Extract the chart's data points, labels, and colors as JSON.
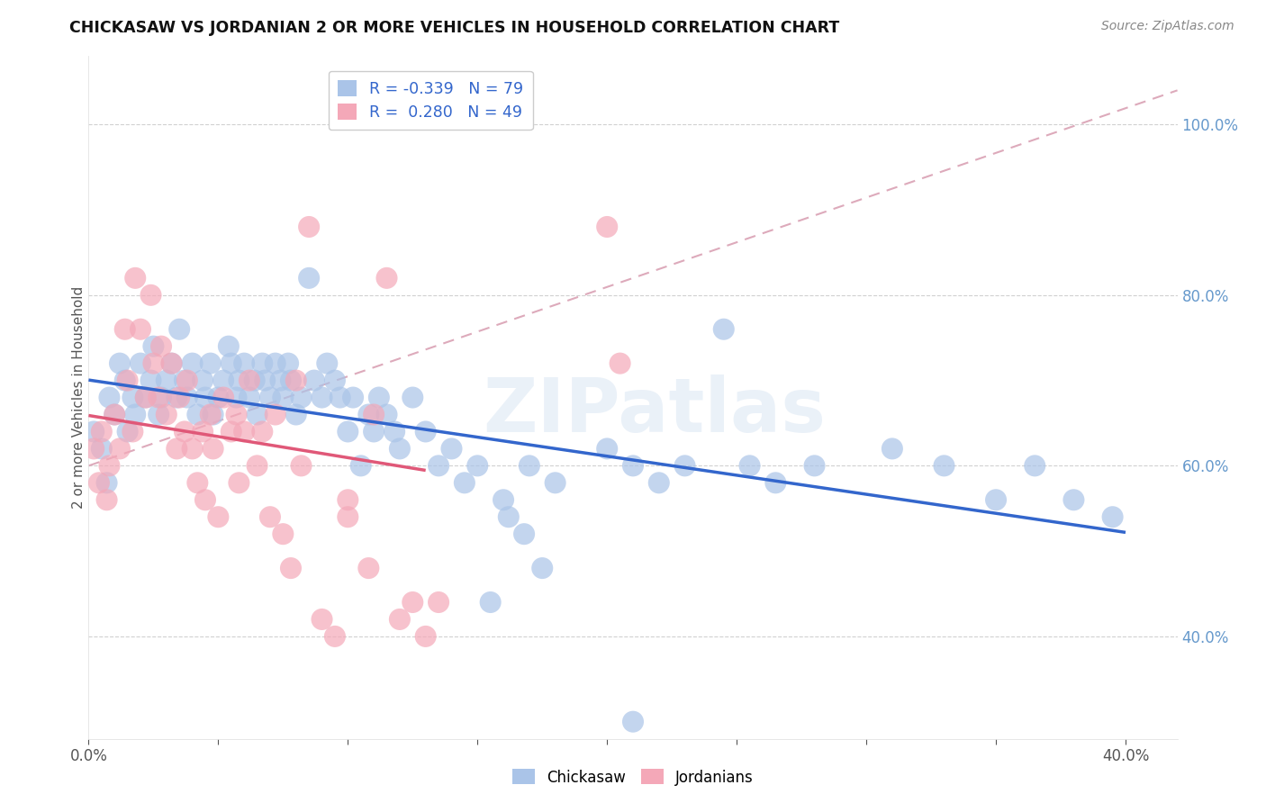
{
  "title": "CHICKASAW VS JORDANIAN 2 OR MORE VEHICLES IN HOUSEHOLD CORRELATION CHART",
  "source": "Source: ZipAtlas.com",
  "ylabel": "2 or more Vehicles in Household",
  "xlim": [
    0.0,
    0.42
  ],
  "ylim": [
    0.28,
    1.08
  ],
  "yticks": [
    0.4,
    0.6,
    0.8,
    1.0
  ],
  "ytick_labels": [
    "40.0%",
    "60.0%",
    "80.0%",
    "100.0%"
  ],
  "xticks": [
    0.0,
    0.05,
    0.1,
    0.15,
    0.2,
    0.25,
    0.3,
    0.35,
    0.4
  ],
  "xtick_labels": [
    "0.0%",
    "",
    "",
    "",
    "",
    "",
    "",
    "",
    "40.0%"
  ],
  "chickasaw_R": -0.339,
  "chickasaw_N": 79,
  "jordanian_R": 0.28,
  "jordanian_N": 49,
  "chickasaw_color": "#aac4e8",
  "jordanian_color": "#f4a8b8",
  "trend_chickasaw_color": "#3366cc",
  "trend_jordanian_color": "#e05878",
  "ref_line_color": "#ddaabb",
  "watermark": "ZIPatlas",
  "background_color": "#ffffff",
  "legend_text_color": "#3366cc",
  "ytick_color": "#6699cc",
  "xtick_color": "#555555",
  "chickasaw_points": [
    [
      0.002,
      0.64
    ],
    [
      0.005,
      0.62
    ],
    [
      0.007,
      0.58
    ],
    [
      0.008,
      0.68
    ],
    [
      0.01,
      0.66
    ],
    [
      0.012,
      0.72
    ],
    [
      0.014,
      0.7
    ],
    [
      0.015,
      0.64
    ],
    [
      0.017,
      0.68
    ],
    [
      0.018,
      0.66
    ],
    [
      0.02,
      0.72
    ],
    [
      0.022,
      0.68
    ],
    [
      0.024,
      0.7
    ],
    [
      0.025,
      0.74
    ],
    [
      0.027,
      0.66
    ],
    [
      0.028,
      0.68
    ],
    [
      0.03,
      0.7
    ],
    [
      0.032,
      0.72
    ],
    [
      0.034,
      0.68
    ],
    [
      0.035,
      0.76
    ],
    [
      0.037,
      0.7
    ],
    [
      0.038,
      0.68
    ],
    [
      0.04,
      0.72
    ],
    [
      0.042,
      0.66
    ],
    [
      0.044,
      0.7
    ],
    [
      0.045,
      0.68
    ],
    [
      0.047,
      0.72
    ],
    [
      0.048,
      0.66
    ],
    [
      0.05,
      0.68
    ],
    [
      0.052,
      0.7
    ],
    [
      0.054,
      0.74
    ],
    [
      0.055,
      0.72
    ],
    [
      0.057,
      0.68
    ],
    [
      0.058,
      0.7
    ],
    [
      0.06,
      0.72
    ],
    [
      0.062,
      0.68
    ],
    [
      0.064,
      0.7
    ],
    [
      0.065,
      0.66
    ],
    [
      0.067,
      0.72
    ],
    [
      0.068,
      0.7
    ],
    [
      0.07,
      0.68
    ],
    [
      0.072,
      0.72
    ],
    [
      0.074,
      0.7
    ],
    [
      0.075,
      0.68
    ],
    [
      0.077,
      0.72
    ],
    [
      0.078,
      0.7
    ],
    [
      0.08,
      0.66
    ],
    [
      0.082,
      0.68
    ],
    [
      0.085,
      0.82
    ],
    [
      0.087,
      0.7
    ],
    [
      0.09,
      0.68
    ],
    [
      0.092,
      0.72
    ],
    [
      0.095,
      0.7
    ],
    [
      0.097,
      0.68
    ],
    [
      0.1,
      0.64
    ],
    [
      0.102,
      0.68
    ],
    [
      0.105,
      0.6
    ],
    [
      0.108,
      0.66
    ],
    [
      0.11,
      0.64
    ],
    [
      0.112,
      0.68
    ],
    [
      0.115,
      0.66
    ],
    [
      0.118,
      0.64
    ],
    [
      0.12,
      0.62
    ],
    [
      0.125,
      0.68
    ],
    [
      0.13,
      0.64
    ],
    [
      0.135,
      0.6
    ],
    [
      0.14,
      0.62
    ],
    [
      0.145,
      0.58
    ],
    [
      0.15,
      0.6
    ],
    [
      0.16,
      0.56
    ],
    [
      0.17,
      0.6
    ],
    [
      0.18,
      0.58
    ],
    [
      0.2,
      0.62
    ],
    [
      0.21,
      0.6
    ],
    [
      0.22,
      0.58
    ],
    [
      0.23,
      0.6
    ],
    [
      0.245,
      0.76
    ],
    [
      0.255,
      0.6
    ],
    [
      0.265,
      0.58
    ],
    [
      0.28,
      0.6
    ],
    [
      0.31,
      0.62
    ],
    [
      0.33,
      0.6
    ],
    [
      0.35,
      0.56
    ],
    [
      0.365,
      0.6
    ],
    [
      0.38,
      0.56
    ],
    [
      0.395,
      0.54
    ],
    [
      0.21,
      0.3
    ],
    [
      0.155,
      0.44
    ],
    [
      0.162,
      0.54
    ],
    [
      0.168,
      0.52
    ],
    [
      0.175,
      0.48
    ]
  ],
  "jordanian_points": [
    [
      0.002,
      0.62
    ],
    [
      0.004,
      0.58
    ],
    [
      0.005,
      0.64
    ],
    [
      0.007,
      0.56
    ],
    [
      0.008,
      0.6
    ],
    [
      0.01,
      0.66
    ],
    [
      0.012,
      0.62
    ],
    [
      0.014,
      0.76
    ],
    [
      0.015,
      0.7
    ],
    [
      0.017,
      0.64
    ],
    [
      0.018,
      0.82
    ],
    [
      0.02,
      0.76
    ],
    [
      0.022,
      0.68
    ],
    [
      0.024,
      0.8
    ],
    [
      0.025,
      0.72
    ],
    [
      0.027,
      0.68
    ],
    [
      0.028,
      0.74
    ],
    [
      0.03,
      0.66
    ],
    [
      0.032,
      0.72
    ],
    [
      0.034,
      0.62
    ],
    [
      0.035,
      0.68
    ],
    [
      0.037,
      0.64
    ],
    [
      0.038,
      0.7
    ],
    [
      0.04,
      0.62
    ],
    [
      0.042,
      0.58
    ],
    [
      0.044,
      0.64
    ],
    [
      0.045,
      0.56
    ],
    [
      0.047,
      0.66
    ],
    [
      0.048,
      0.62
    ],
    [
      0.05,
      0.54
    ],
    [
      0.052,
      0.68
    ],
    [
      0.055,
      0.64
    ],
    [
      0.057,
      0.66
    ],
    [
      0.058,
      0.58
    ],
    [
      0.06,
      0.64
    ],
    [
      0.062,
      0.7
    ],
    [
      0.065,
      0.6
    ],
    [
      0.067,
      0.64
    ],
    [
      0.07,
      0.54
    ],
    [
      0.072,
      0.66
    ],
    [
      0.075,
      0.52
    ],
    [
      0.078,
      0.48
    ],
    [
      0.08,
      0.7
    ],
    [
      0.082,
      0.6
    ],
    [
      0.085,
      0.88
    ],
    [
      0.09,
      0.42
    ],
    [
      0.095,
      0.4
    ],
    [
      0.1,
      0.54
    ],
    [
      0.11,
      0.66
    ],
    [
      0.115,
      0.82
    ],
    [
      0.12,
      0.42
    ],
    [
      0.125,
      0.44
    ],
    [
      0.13,
      0.4
    ],
    [
      0.135,
      0.44
    ],
    [
      0.2,
      0.88
    ],
    [
      0.205,
      0.72
    ],
    [
      0.1,
      0.56
    ],
    [
      0.108,
      0.48
    ]
  ]
}
